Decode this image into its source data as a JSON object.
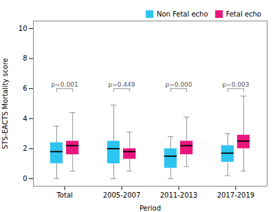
{
  "chart_data": {
    "type": "box",
    "xlabel": "Period",
    "ylabel": "STS-EACTS Mortality score",
    "categories": [
      "Total",
      "2005-2007",
      "2011-2013",
      "2017-2019"
    ],
    "series": [
      {
        "name": "Non Fetal echo",
        "color": "#2EC4F0",
        "values": [
          {
            "whislo": 0.0,
            "q1": 1.0,
            "med": 1.8,
            "q3": 2.4,
            "whishi": 3.5
          },
          {
            "whislo": 0.0,
            "q1": 1.0,
            "med": 2.0,
            "q3": 2.5,
            "whishi": 4.9
          },
          {
            "whislo": 0.0,
            "q1": 0.7,
            "med": 1.5,
            "q3": 2.0,
            "whishi": 2.8
          },
          {
            "whislo": 0.2,
            "q1": 1.1,
            "med": 1.7,
            "q3": 2.2,
            "whishi": 3.0
          }
        ]
      },
      {
        "name": "Fetal echo",
        "color": "#E8177E",
        "values": [
          {
            "whislo": 0.5,
            "q1": 1.6,
            "med": 2.2,
            "q3": 2.5,
            "whishi": 4.4
          },
          {
            "whislo": 0.5,
            "q1": 1.3,
            "med": 1.8,
            "q3": 2.0,
            "whishi": 3.1
          },
          {
            "whislo": 0.8,
            "q1": 1.6,
            "med": 2.2,
            "q3": 2.5,
            "whishi": 4.1
          },
          {
            "whislo": 0.5,
            "q1": 2.0,
            "med": 2.5,
            "q3": 2.9,
            "whishi": 5.5
          }
        ]
      }
    ],
    "annotations": [
      "p=0.001",
      "p=0.449",
      "p=0.000",
      "p=0.003"
    ],
    "ylim": [
      -0.5,
      10.5
    ],
    "yticks": [
      0,
      2,
      4,
      6,
      8,
      10
    ],
    "legend": "upper right"
  }
}
